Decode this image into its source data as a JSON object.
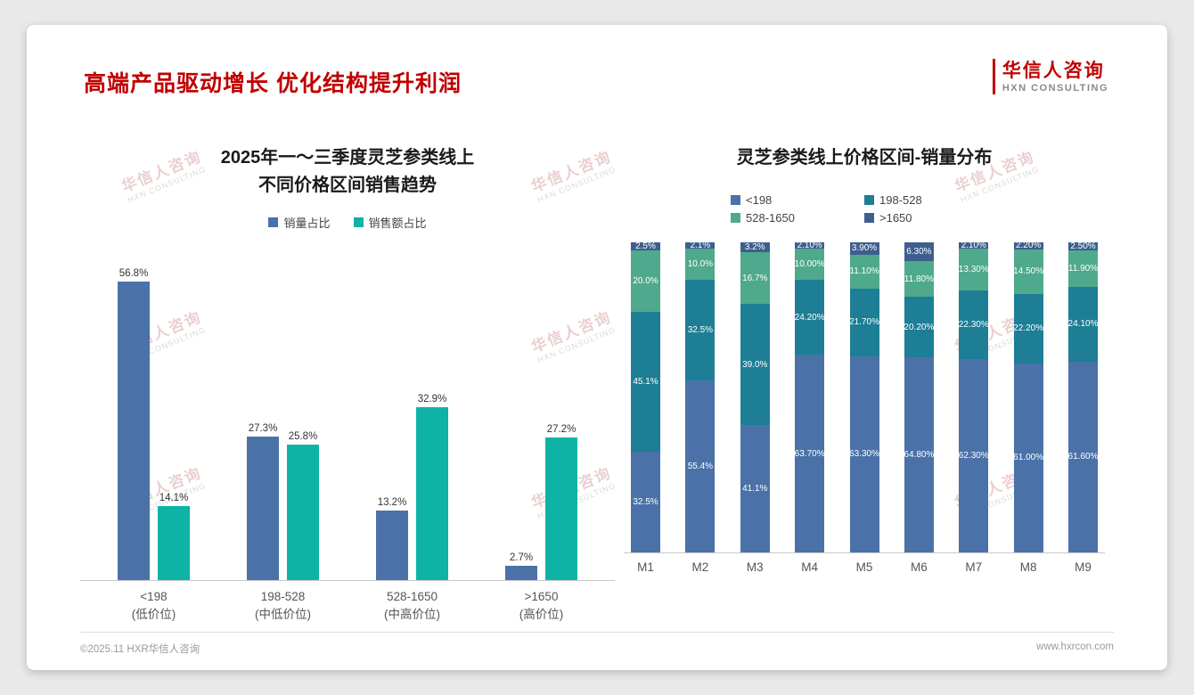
{
  "slide": {
    "title": "高端产品驱动增长 优化结构提升利润",
    "logo": {
      "cn": "华信人咨询",
      "en": "HXN CONSULTING"
    },
    "footer": {
      "left": "©2025.11 HXR华信人咨询",
      "right": "www.hxrcon.com"
    },
    "watermark": {
      "cn": "华信人咨询",
      "en": "HXN CONSULTING"
    }
  },
  "colors": {
    "title_red": "#c00000",
    "steel_blue": "#4a72a8",
    "bright_teal": "#0fb3a6",
    "dark_teal": "#1d7e95",
    "sea_green": "#4fa98c",
    "dark_blue": "#3c5f8e"
  },
  "chart_data": [
    {
      "type": "bar",
      "title": "2025年一～三季度灵芝参类线上不同价格区间销售趋势",
      "title_lines": [
        "2025年一～三季度灵芝参类线上",
        "不同价格区间销售趋势"
      ],
      "categories": [
        "<198",
        "198-528",
        "528-1650",
        ">1650"
      ],
      "category_sublabels": [
        "(低价位)",
        "(中低价位)",
        "(中高价位)",
        "(高价位)"
      ],
      "series": [
        {
          "name": "销量占比",
          "color": "#4a72a8",
          "values": [
            "56.8",
            "27.3",
            "13.2",
            "2.7"
          ]
        },
        {
          "name": "销售额占比",
          "color": "#0fb3a6",
          "values": [
            "14.1",
            "25.8",
            "32.9",
            "27.2"
          ]
        }
      ],
      "ylim": [
        0,
        60
      ],
      "value_suffix": "%",
      "grid": false,
      "legend_position": "top"
    },
    {
      "type": "stacked-bar",
      "title": "灵芝参类线上价格区间-销量分布",
      "categories": [
        "M1",
        "M2",
        "M3",
        "M4",
        "M5",
        "M6",
        "M7",
        "M8",
        "M9"
      ],
      "series": [
        {
          "name": "<198",
          "color": "#4a72a8",
          "values": [
            "32.5",
            "55.4",
            "41.1",
            "63.70",
            "63.30",
            "64.80",
            "62.30",
            "61.00",
            "61.60"
          ]
        },
        {
          "name": "198-528",
          "color": "#1d7e95",
          "values": [
            "45.1",
            "32.5",
            "39.0",
            "24.20",
            "21.70",
            "20.20",
            "22.30",
            "22.20",
            "24.10"
          ]
        },
        {
          "name": "528-1650",
          "color": "#4fa98c",
          "values": [
            "20.0",
            "10.0",
            "16.7",
            "10.00",
            "11.10",
            "11.80",
            "13.30",
            "14.50",
            "11.90"
          ]
        },
        {
          "name": ">1650",
          "color": "#3c5f8e",
          "values": [
            "2.5",
            "2.1",
            "3.2",
            "2.10",
            "3.90",
            "6.30",
            "2.10",
            "2.20",
            "2.50"
          ]
        }
      ],
      "value_suffix": "%",
      "ylim": [
        0,
        100
      ],
      "grid": false,
      "legend_position": "top"
    }
  ]
}
